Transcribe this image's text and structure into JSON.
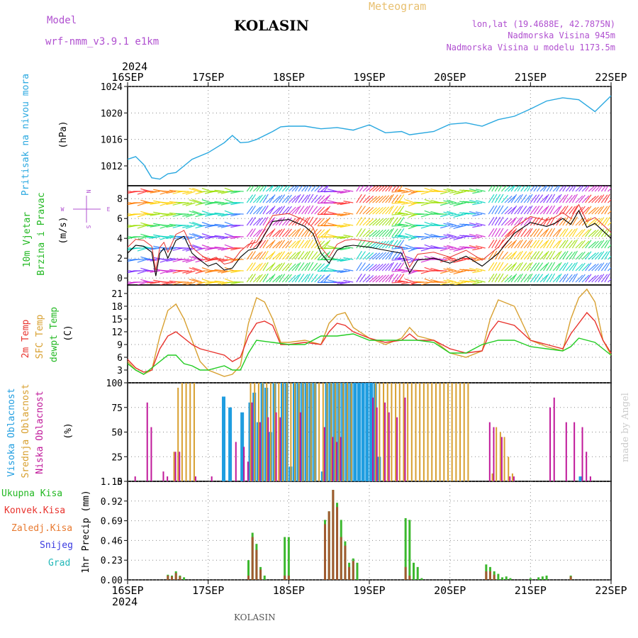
{
  "header": {
    "model_label": "Model",
    "model_value": "wrf-nmm_v3.9.1  e1km",
    "title": "KOLASIN",
    "meteogram": "Meteogram",
    "lonlat": "lon,lat (19.4688E, 42.7875N)",
    "altitude": "Nadmorska Visina 945m",
    "model_altitude": "Nadmorska Visina u modelu 1173.5m",
    "footer": "KOLASIN",
    "credit": "made by Angel"
  },
  "time_axis": {
    "year": "2024",
    "ticks": [
      "16SEP",
      "17SEP",
      "18SEP",
      "19SEP",
      "20SEP",
      "21SEP",
      "22SEP"
    ]
  },
  "colors": {
    "pressure": "#29a8e0",
    "temp2m": "#e8322c",
    "sfc": "#d8a030",
    "dewpt": "#22cc22",
    "high_cloud": "#1f9de0",
    "mid_cloud": "#d8a030",
    "low_cloud": "#c0189a",
    "total_precip": "#3cb82e",
    "conv_precip": "#a05a30",
    "title_purple": "#b050d0",
    "meteogram_orange": "#e8c070"
  },
  "panels": {
    "pressure": {
      "labels": [
        "Pritisak na nivou mora",
        "(hPa)"
      ],
      "yticks": [
        "1012",
        "1016",
        "1020",
        "1024"
      ]
    },
    "wind": {
      "labels": [
        "10m Vjetar",
        "Brzina i Pravac",
        "(m/s)"
      ],
      "yticks": [
        "0",
        "2",
        "4",
        "6",
        "8"
      ],
      "compass": [
        "N",
        "W",
        "E",
        "S"
      ]
    },
    "temp": {
      "labels": [
        "2m Temp",
        "SFC Temp",
        "dewpt Temp",
        "(C)"
      ],
      "yticks": [
        "3",
        "6",
        "9",
        "12",
        "15",
        "18",
        "21"
      ]
    },
    "cloud": {
      "labels": [
        "Visoka Oblacnost",
        "Srednja Oblacnost",
        "Niska Oblacnost",
        "(%)"
      ],
      "yticks": [
        "0",
        "25",
        "50",
        "75",
        "100"
      ]
    },
    "precip": {
      "labels": [
        "1hr Precip (mm)"
      ],
      "legend": [
        "Ukupna Kisa",
        "Konvek.Kisa",
        "Zaledj.Kisa",
        "Snijeg",
        "Grad"
      ],
      "yticks": [
        "0.00",
        "0.23",
        "0.46",
        "0.69",
        "0.92",
        "1.15"
      ]
    }
  },
  "chart_data": [
    {
      "type": "line",
      "name": "pressure",
      "ylabel": "(hPa)",
      "ylim": [
        1009,
        1024
      ],
      "x_unit": "days since 16SEP 00UTC",
      "series": [
        {
          "name": "Pritisak na nivou mora",
          "x": [
            0,
            0.1,
            0.2,
            0.3,
            0.4,
            0.5,
            0.6,
            0.7,
            0.8,
            1.0,
            1.2,
            1.3,
            1.4,
            1.5,
            1.6,
            1.8,
            1.9,
            2.0,
            2.2,
            2.4,
            2.6,
            2.8,
            3.0,
            3.2,
            3.4,
            3.5,
            3.8,
            4.0,
            4.2,
            4.4,
            4.6,
            4.8,
            5.0,
            5.2,
            5.4,
            5.6,
            5.8,
            6.0
          ],
          "values": [
            1013,
            1013.4,
            1012.2,
            1010.2,
            1010.0,
            1010.8,
            1011.0,
            1012.0,
            1013.0,
            1014.0,
            1015.5,
            1016.6,
            1015.5,
            1015.6,
            1016.0,
            1017.2,
            1017.9,
            1018.0,
            1018.0,
            1017.6,
            1017.8,
            1017.4,
            1018.2,
            1017.0,
            1017.2,
            1016.7,
            1017.2,
            1018.3,
            1018.5,
            1018.0,
            1019.0,
            1019.5,
            1020.6,
            1021.8,
            1022.3,
            1022.0,
            1020.2,
            1022.6
          ]
        }
      ]
    },
    {
      "type": "line",
      "name": "wind",
      "ylabel": "(m/s)",
      "ylim": [
        -0.7,
        9.3
      ],
      "x_unit": "days since 16SEP 00UTC",
      "series": [
        {
          "name": "wind speed",
          "x": [
            0,
            0.1,
            0.2,
            0.3,
            0.35,
            0.4,
            0.45,
            0.5,
            0.6,
            0.7,
            0.8,
            0.9,
            1.0,
            1.1,
            1.2,
            1.3,
            1.4,
            1.5,
            1.6,
            1.8,
            2.0,
            2.2,
            2.3,
            2.4,
            2.5,
            2.6,
            2.7,
            2.8,
            3.0,
            3.2,
            3.4,
            3.5,
            3.6,
            3.8,
            4.0,
            4.2,
            4.4,
            4.6,
            4.8,
            5.0,
            5.2,
            5.3,
            5.4,
            5.5,
            5.6,
            5.7,
            5.8,
            6.0
          ],
          "values": [
            2.5,
            3.3,
            3.2,
            2.6,
            0.2,
            2.5,
            3.0,
            2.0,
            3.8,
            4.2,
            2.5,
            1.8,
            1.2,
            1.5,
            0.8,
            1.0,
            2.1,
            2.8,
            3.0,
            5.7,
            5.9,
            5.2,
            4.5,
            2.5,
            1.5,
            2.8,
            3.2,
            3.3,
            3.1,
            2.8,
            2.5,
            0.5,
            1.8,
            2.0,
            1.5,
            2.2,
            1.2,
            2.5,
            4.5,
            5.6,
            5.2,
            5.5,
            6.0,
            5.4,
            6.8,
            5.1,
            5.5,
            4.0
          ]
        }
      ]
    },
    {
      "type": "line",
      "name": "temperature",
      "ylabel": "(C)",
      "ylim": [
        0,
        23
      ],
      "x_unit": "days since 16SEP 00UTC",
      "series": [
        {
          "name": "2m Temp",
          "x": [
            0,
            0.1,
            0.2,
            0.3,
            0.4,
            0.5,
            0.6,
            0.7,
            0.8,
            0.9,
            1.0,
            1.2,
            1.3,
            1.4,
            1.5,
            1.6,
            1.7,
            1.8,
            1.9,
            2.0,
            2.2,
            2.4,
            2.5,
            2.6,
            2.7,
            2.8,
            3.0,
            3.2,
            3.4,
            3.5,
            3.6,
            3.8,
            4.0,
            4.2,
            4.4,
            4.5,
            4.6,
            4.8,
            5.0,
            5.2,
            5.4,
            5.5,
            5.6,
            5.7,
            5.8,
            5.9,
            6.0
          ],
          "values": [
            5.5,
            3.5,
            2.5,
            3.0,
            8.0,
            11.0,
            12.0,
            10.5,
            9.0,
            8.0,
            7.5,
            6.5,
            5.0,
            6.0,
            11.0,
            14.0,
            14.5,
            13.5,
            9.0,
            9.0,
            9.5,
            9.0,
            12.0,
            14.0,
            13.5,
            12.0,
            10.5,
            9.5,
            10.0,
            11.5,
            10.0,
            10.0,
            8.0,
            7.0,
            7.5,
            12.0,
            14.5,
            13.5,
            10.0,
            9.0,
            8.0,
            11.5,
            14.0,
            16.5,
            14.5,
            10.0,
            7.0
          ]
        },
        {
          "name": "SFC Temp",
          "x": [
            0,
            0.1,
            0.2,
            0.3,
            0.4,
            0.5,
            0.6,
            0.7,
            0.8,
            0.9,
            1.0,
            1.2,
            1.3,
            1.4,
            1.5,
            1.6,
            1.7,
            1.8,
            1.9,
            2.0,
            2.2,
            2.4,
            2.5,
            2.6,
            2.7,
            2.8,
            3.0,
            3.2,
            3.4,
            3.5,
            3.6,
            3.8,
            4.0,
            4.2,
            4.4,
            4.5,
            4.6,
            4.8,
            5.0,
            5.2,
            5.4,
            5.5,
            5.6,
            5.7,
            5.8,
            5.9,
            6.0
          ],
          "values": [
            5.0,
            3.0,
            2.0,
            3.0,
            11.0,
            17.0,
            18.5,
            15.0,
            10.0,
            5.0,
            3.0,
            1.5,
            2.0,
            4.0,
            14.0,
            20.0,
            19.0,
            15.0,
            9.5,
            9.5,
            10.0,
            9.0,
            14.0,
            16.0,
            16.5,
            13.0,
            10.5,
            9.0,
            10.5,
            13.0,
            11.0,
            10.0,
            7.0,
            6.0,
            7.5,
            15.0,
            19.5,
            18.0,
            10.0,
            8.5,
            7.5,
            15.0,
            20.0,
            22.0,
            19.0,
            10.0,
            6.5
          ]
        },
        {
          "name": "dewpt Temp",
          "x": [
            0,
            0.1,
            0.2,
            0.3,
            0.4,
            0.5,
            0.6,
            0.7,
            0.8,
            0.9,
            1.0,
            1.2,
            1.3,
            1.4,
            1.5,
            1.6,
            1.8,
            2.0,
            2.2,
            2.4,
            2.6,
            2.8,
            3.0,
            3.2,
            3.4,
            3.6,
            3.8,
            4.0,
            4.2,
            4.4,
            4.6,
            4.8,
            5.0,
            5.2,
            5.4,
            5.5,
            5.6,
            5.8,
            6.0
          ],
          "values": [
            4.5,
            3.0,
            2.0,
            3.5,
            5.0,
            6.5,
            6.5,
            4.5,
            4.0,
            3.0,
            3.0,
            4.0,
            3.0,
            3.0,
            7.0,
            10.0,
            9.5,
            9.0,
            9.0,
            11.0,
            11.0,
            11.5,
            10.0,
            10.0,
            10.0,
            10.0,
            9.5,
            7.0,
            7.0,
            9.0,
            10.0,
            10.0,
            8.5,
            8.0,
            7.5,
            8.5,
            10.5,
            9.5,
            6.5
          ]
        }
      ]
    },
    {
      "type": "bar",
      "name": "cloud cover",
      "ylabel": "(%)",
      "ylim": [
        0,
        100
      ],
      "series": [
        {
          "name": "Visoka Oblacnost",
          "note": "high cloud",
          "x": [
            1.17,
            1.25,
            1.4,
            1.5,
            1.55,
            1.6,
            1.65,
            1.7,
            1.75,
            1.8,
            1.9,
            1.95,
            2.0,
            2.05,
            2.1,
            2.15,
            2.2,
            2.25,
            2.3,
            2.4,
            2.45,
            2.5,
            2.55,
            2.6,
            2.65,
            2.7,
            2.75,
            2.8,
            2.85,
            2.9,
            2.95,
            3.0,
            3.05,
            3.1,
            5.6
          ],
          "values": [
            86,
            75,
            70,
            80,
            90,
            60,
            100,
            95,
            50,
            100,
            100,
            100,
            15,
            100,
            100,
            100,
            100,
            100,
            100,
            10,
            100,
            100,
            100,
            100,
            100,
            100,
            100,
            100,
            100,
            100,
            100,
            100,
            100,
            25,
            5
          ]
        },
        {
          "name": "Srednja Oblacnost",
          "note": "mid cloud",
          "x": [
            0.55,
            0.6,
            0.65,
            0.7,
            0.75,
            0.8,
            1.5,
            1.55,
            1.6,
            1.65,
            1.7,
            1.75,
            1.8,
            1.85,
            1.9,
            1.95,
            2.0,
            2.05,
            2.1,
            2.15,
            2.2,
            2.25,
            2.3,
            2.35,
            2.4,
            2.45,
            2.5,
            2.55,
            2.6,
            2.65,
            2.7,
            2.75,
            3.05,
            3.1,
            3.15,
            3.2,
            3.25,
            3.3,
            3.35,
            3.4,
            3.45,
            3.5,
            3.55,
            3.6,
            3.65,
            3.7,
            3.75,
            3.8,
            3.85,
            3.9,
            3.95,
            4.0,
            4.05,
            4.1,
            4.15,
            4.2,
            4.5,
            4.55,
            4.6,
            4.65,
            4.7,
            4.75
          ],
          "values": [
            30,
            95,
            100,
            100,
            100,
            100,
            100,
            100,
            100,
            100,
            100,
            100,
            100,
            100,
            100,
            100,
            100,
            100,
            100,
            100,
            100,
            100,
            100,
            100,
            100,
            100,
            100,
            100,
            100,
            100,
            100,
            100,
            100,
            100,
            100,
            100,
            100,
            100,
            100,
            100,
            100,
            100,
            100,
            100,
            100,
            100,
            100,
            100,
            100,
            100,
            100,
            100,
            100,
            100,
            100,
            100,
            8,
            55,
            50,
            45,
            25,
            8
          ]
        },
        {
          "name": "Niska Oblacnost",
          "note": "low cloud",
          "x": [
            0.05,
            0.2,
            0.25,
            0.4,
            0.45,
            0.55,
            0.6,
            0.8,
            1.0,
            1.3,
            1.4,
            1.45,
            1.5,
            1.6,
            1.7,
            1.8,
            1.85,
            2.1,
            2.4,
            2.5,
            2.55,
            2.6,
            3.0,
            3.05,
            3.15,
            3.2,
            3.3,
            3.4,
            4.45,
            4.5,
            4.6,
            4.7,
            4.75,
            5.2,
            5.25,
            5.4,
            5.5,
            5.6,
            5.65,
            5.7
          ],
          "values": [
            5,
            80,
            55,
            10,
            5,
            30,
            30,
            5,
            5,
            40,
            35,
            20,
            80,
            60,
            65,
            70,
            65,
            70,
            55,
            45,
            40,
            45,
            85,
            75,
            80,
            70,
            65,
            85,
            60,
            55,
            45,
            5,
            5,
            75,
            85,
            60,
            60,
            55,
            30,
            5
          ]
        }
      ]
    },
    {
      "type": "bar",
      "name": "precipitation",
      "ylabel": "1hr Precip (mm)",
      "ylim": [
        0,
        1.15
      ],
      "series": [
        {
          "name": "Ukupna Kisa",
          "x": [
            0.5,
            0.55,
            0.6,
            0.65,
            0.7,
            1.5,
            1.55,
            1.6,
            1.65,
            1.7,
            1.95,
            2.0,
            2.45,
            2.5,
            2.55,
            2.6,
            2.65,
            2.7,
            2.75,
            2.8,
            2.85,
            3.45,
            3.5,
            3.55,
            3.6,
            3.65,
            4.45,
            4.5,
            4.55,
            4.6,
            4.65,
            4.7,
            4.75,
            5.0,
            5.1,
            5.15,
            5.2,
            5.5
          ],
          "values": [
            0.06,
            0.05,
            0.1,
            0.05,
            0.03,
            0.23,
            0.55,
            0.42,
            0.15,
            0.05,
            0.5,
            0.5,
            0.7,
            0.8,
            1.05,
            0.9,
            0.7,
            0.45,
            0.2,
            0.25,
            0.2,
            0.72,
            0.7,
            0.2,
            0.15,
            0.02,
            0.18,
            0.15,
            0.1,
            0.07,
            0.03,
            0.04,
            0.02,
            0.02,
            0.03,
            0.04,
            0.05,
            0.05
          ]
        },
        {
          "name": "Konvek.Kisa",
          "x": [
            0.5,
            0.55,
            0.6,
            0.65,
            1.5,
            1.55,
            1.6,
            1.65,
            1.95,
            2.0,
            2.45,
            2.5,
            2.55,
            2.6,
            2.65,
            2.7,
            2.75,
            2.8,
            3.45,
            3.5,
            4.45,
            4.5,
            4.55,
            5.5
          ],
          "values": [
            0.05,
            0.04,
            0.08,
            0.04,
            0.05,
            0.5,
            0.35,
            0.12,
            0.05,
            0.05,
            0.65,
            0.8,
            1.05,
            0.85,
            0.5,
            0.4,
            0.15,
            0.22,
            0.15,
            0.05,
            0.1,
            0.1,
            0.06,
            0.04
          ]
        }
      ]
    }
  ]
}
